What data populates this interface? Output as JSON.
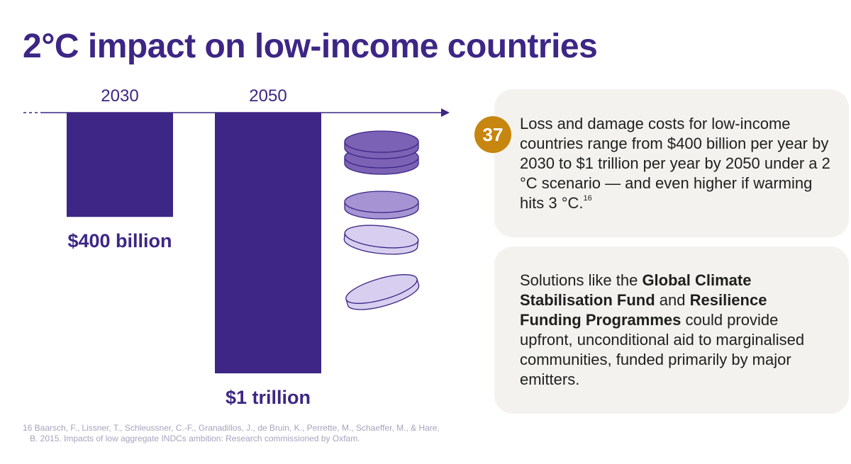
{
  "title": "2°C impact on low-income countries",
  "colors": {
    "brand_purple": "#3d2685",
    "card_bg": "#f3f2ee",
    "badge_gold": "#c6860f",
    "coin_dark": "#7b62b5",
    "coin_mid": "#a593d3",
    "coin_light": "#d8cff0"
  },
  "chart_data": {
    "type": "bar",
    "orientation": "downward",
    "categories": [
      "2030",
      "2050"
    ],
    "values": [
      400,
      1000
    ],
    "unit": "billion USD per year",
    "value_labels": [
      "$400 billion",
      "$1 trillion"
    ],
    "decoration": "stack-of-coins-icon"
  },
  "badge": "37",
  "card1": {
    "text": "Loss and damage costs for low-income countries range from $400 billion per year by 2030 to $1 trillion per year by 2050 under a 2 °C scenario — and even higher if warming hits 3 °C.",
    "sup": "16"
  },
  "card2": {
    "text_1": "Solutions like the ",
    "bold_1": "Global Climate Stabilisation Fund",
    "text_2": " and ",
    "bold_2": "Resilience Funding Programmes",
    "text_3": " could provide upfront, unconditional aid to marginalised communities, funded primarily by major emitters."
  },
  "footnote": {
    "line1": "16 Baarsch, F., Lissner, T., Schleussner, C.-F., Granadillos, J., de Bruin, K., Perrette, M., Schaeffer, M., & Hare,",
    "line2": "B. 2015. Impacts of low aggregate INDCs ambition: Research commissioned by Oxfam."
  }
}
